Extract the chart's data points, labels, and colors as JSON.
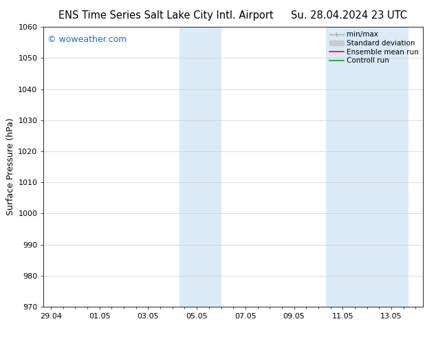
{
  "title_left": "ENS Time Series Salt Lake City Intl. Airport",
  "title_right": "Su. 28.04.2024 23 UTC",
  "ylabel": "Surface Pressure (hPa)",
  "watermark": "© woweather.com",
  "watermark_color": "#1a6fc4",
  "ylim": [
    970,
    1060
  ],
  "yticks": [
    970,
    980,
    990,
    1000,
    1010,
    1020,
    1030,
    1040,
    1050,
    1060
  ],
  "xtick_labels": [
    "29.04",
    "01.05",
    "03.05",
    "05.05",
    "07.05",
    "09.05",
    "11.05",
    "13.05"
  ],
  "xtick_positions": [
    0,
    2,
    4,
    6,
    8,
    10,
    12,
    14
  ],
  "xlim": [
    -0.3,
    15.3
  ],
  "shaded_bands": [
    {
      "x_start": 5.3,
      "x_end": 7.0
    },
    {
      "x_start": 11.3,
      "x_end": 14.7
    }
  ],
  "shaded_color": "#daeaf7",
  "grid_color": "#cccccc",
  "background_color": "#ffffff",
  "legend_items": [
    {
      "label": "min/max",
      "color": "#aaaaaa",
      "lw": 1.0
    },
    {
      "label": "Standard deviation",
      "color": "#cccccc",
      "lw": 6
    },
    {
      "label": "Ensemble mean run",
      "color": "#ff0000",
      "lw": 1.2
    },
    {
      "label": "Controll run",
      "color": "#228B22",
      "lw": 1.2
    }
  ],
  "title_fontsize": 10.5,
  "tick_fontsize": 8,
  "ylabel_fontsize": 9,
  "watermark_fontsize": 9,
  "legend_fontsize": 7.5
}
